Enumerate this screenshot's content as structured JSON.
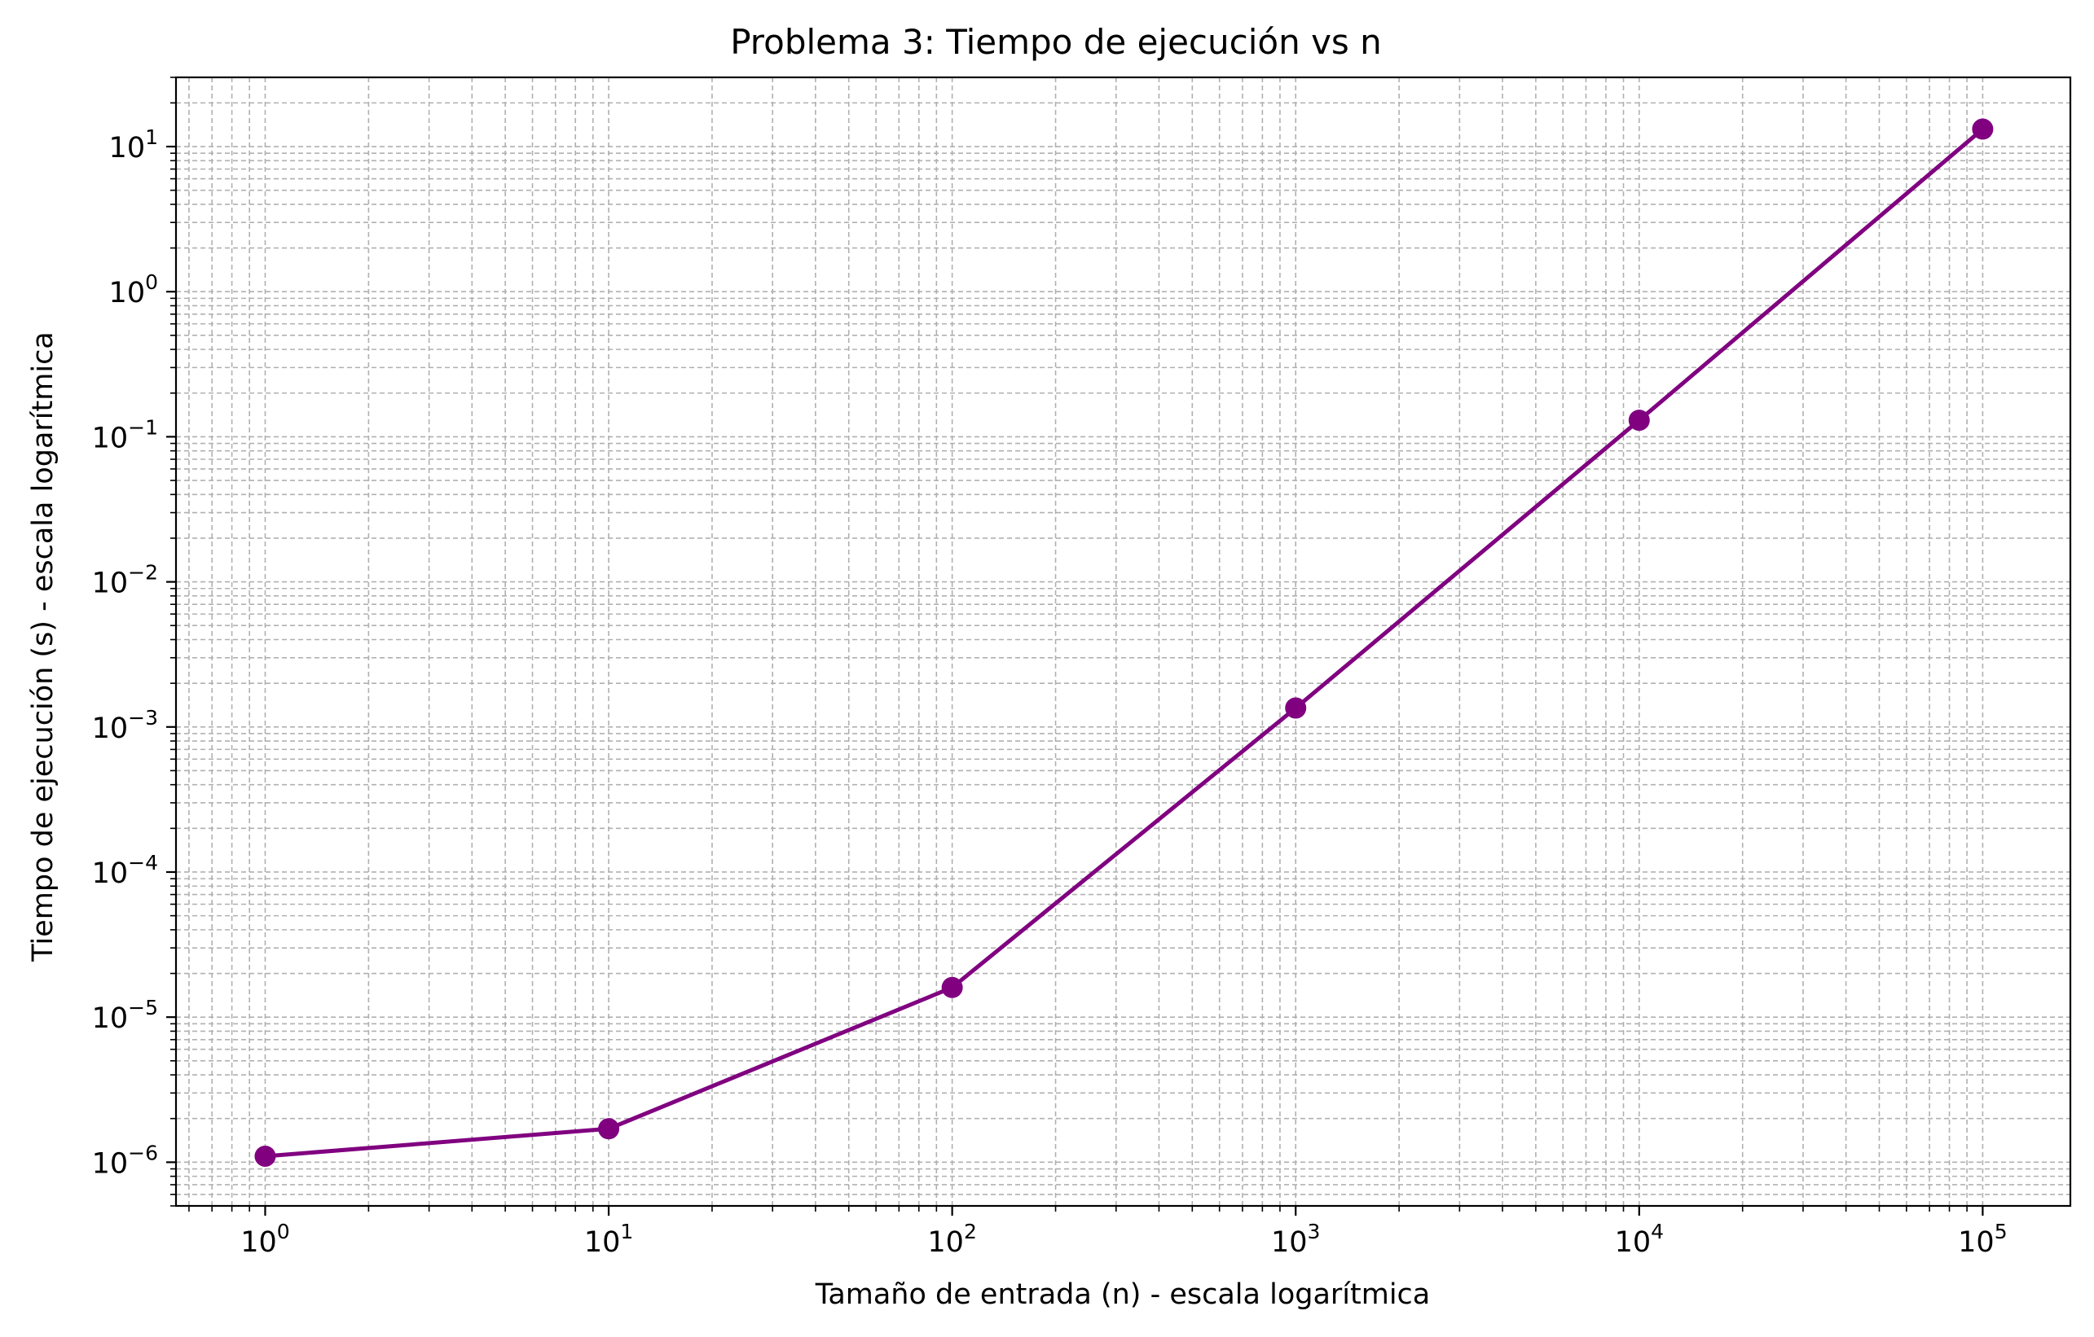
{
  "chart_data": {
    "type": "line",
    "title": "Problema 3: Tiempo de ejecución vs n",
    "xlabel": "Tamaño de entrada (n) - escala logarítmica",
    "ylabel": "Tiempo de ejecución (s) - escala logarítmica",
    "xscale": "log",
    "yscale": "log",
    "xlim": [
      0.55,
      180000
    ],
    "ylim": [
      5e-07,
      30
    ],
    "grid": true,
    "grid_which": "both",
    "x_ticks": [
      {
        "base": "10",
        "exp": "0",
        "value": 1
      },
      {
        "base": "10",
        "exp": "1",
        "value": 10
      },
      {
        "base": "10",
        "exp": "2",
        "value": 100
      },
      {
        "base": "10",
        "exp": "3",
        "value": 1000
      },
      {
        "base": "10",
        "exp": "4",
        "value": 10000
      },
      {
        "base": "10",
        "exp": "5",
        "value": 100000
      }
    ],
    "y_ticks": [
      {
        "base": "10",
        "exp": "−6",
        "value": 1e-06
      },
      {
        "base": "10",
        "exp": "−5",
        "value": 1e-05
      },
      {
        "base": "10",
        "exp": "−4",
        "value": 0.0001
      },
      {
        "base": "10",
        "exp": "−3",
        "value": 0.001
      },
      {
        "base": "10",
        "exp": "−2",
        "value": 0.01
      },
      {
        "base": "10",
        "exp": "−1",
        "value": 0.1
      },
      {
        "base": "10",
        "exp": "0",
        "value": 1
      },
      {
        "base": "10",
        "exp": "1",
        "value": 10
      }
    ],
    "series": [
      {
        "color": "#800080",
        "marker": "circle",
        "x": [
          1,
          10,
          100,
          1000,
          10000,
          100000
        ],
        "y": [
          1.1e-06,
          1.7e-06,
          1.6e-05,
          0.00135,
          0.13,
          13.2
        ]
      }
    ]
  }
}
